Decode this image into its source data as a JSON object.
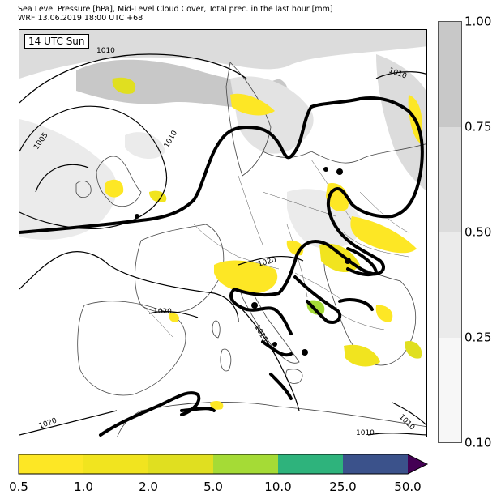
{
  "header": {
    "title_line1": "Sea Level Pressure [hPa], Mid-Level Cloud Cover, Total prec. in the last hour [mm]",
    "title_line2": "WRF 13.06.2019 18:00 UTC +68"
  },
  "map": {
    "time_label": "14 UTC Sun",
    "isobar_labels": [
      "1010",
      "1010",
      "1005",
      "1010",
      "1020",
      "1020",
      "1015",
      "1020",
      "1010",
      "1010"
    ]
  },
  "cloud_colorbar": {
    "ticks": [
      "1.00",
      "0.75",
      "0.50",
      "0.25",
      "0.10"
    ],
    "colors": [
      "#c8c8c8",
      "#dcdcdc",
      "#ebebeb",
      "#f7f7f7"
    ]
  },
  "precip_colorbar": {
    "labels": [
      "0.5",
      "1.0",
      "2.0",
      "5.0",
      "10.0",
      "25.0",
      "50.0"
    ],
    "colors": [
      "#fde725",
      "#f1e41f",
      "#e0df20",
      "#a5db36",
      "#2eb37c",
      "#3b528b",
      "#440154"
    ]
  }
}
